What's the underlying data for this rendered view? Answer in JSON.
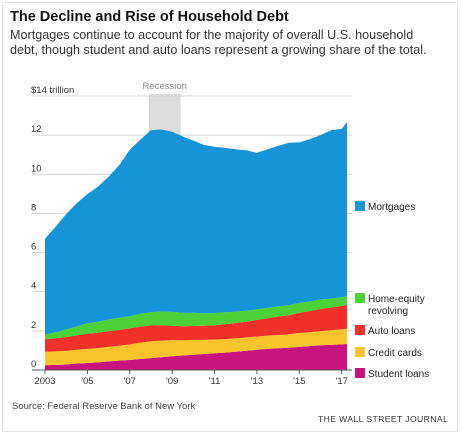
{
  "header": {
    "title": "The Decline and Rise of Household Debt",
    "subtitle": "Mortgages continue to account for the majority of overall U.S. household debt, though student and auto loans represent a growing share of the total."
  },
  "footer": {
    "source": "Source: Federal Reserve Bank of New York",
    "credit": "THE WALL STREET JOURNAL"
  },
  "chart_data": {
    "type": "area",
    "stacked": true,
    "title": "The Decline and Rise of Household Debt",
    "ylabel": "",
    "y_unit_label": "$14 trillion",
    "ylim": [
      0,
      14
    ],
    "yticks": [
      0,
      2,
      4,
      6,
      8,
      10,
      12
    ],
    "xlim": [
      2003.0,
      2017.25
    ],
    "xtick_labels": [
      {
        "x": 2003,
        "label": "2003"
      },
      {
        "x": 2005,
        "label": "'05"
      },
      {
        "x": 2007,
        "label": "'07"
      },
      {
        "x": 2009,
        "label": "'09"
      },
      {
        "x": 2011,
        "label": "'11"
      },
      {
        "x": 2013,
        "label": "'13"
      },
      {
        "x": 2015,
        "label": "'15"
      },
      {
        "x": 2017,
        "label": "'17"
      }
    ],
    "grid": "horizontal",
    "legend_placement": "right, labels beside series ends",
    "recession": {
      "label": "Recession",
      "start": 2007.9,
      "end": 2009.4,
      "color": "#dcdcdc"
    },
    "x": [
      2003.0,
      2003.5,
      2004.0,
      2004.5,
      2005.0,
      2005.5,
      2006.0,
      2006.5,
      2007.0,
      2007.5,
      2008.0,
      2008.5,
      2009.0,
      2009.5,
      2010.0,
      2010.5,
      2011.0,
      2011.5,
      2012.0,
      2012.5,
      2013.0,
      2013.5,
      2014.0,
      2014.5,
      2015.0,
      2015.5,
      2016.0,
      2016.5,
      2017.0,
      2017.25
    ],
    "series": [
      {
        "name": "Student loans",
        "color": "#c8147e",
        "values": [
          0.24,
          0.26,
          0.28,
          0.33,
          0.36,
          0.39,
          0.44,
          0.48,
          0.51,
          0.56,
          0.61,
          0.65,
          0.7,
          0.74,
          0.78,
          0.82,
          0.86,
          0.89,
          0.93,
          0.98,
          1.03,
          1.08,
          1.11,
          1.14,
          1.18,
          1.22,
          1.26,
          1.28,
          1.31,
          1.33
        ]
      },
      {
        "name": "Credit cards",
        "color": "#f9c42c",
        "values": [
          0.69,
          0.69,
          0.7,
          0.7,
          0.72,
          0.73,
          0.74,
          0.76,
          0.8,
          0.84,
          0.86,
          0.85,
          0.83,
          0.78,
          0.76,
          0.72,
          0.7,
          0.69,
          0.69,
          0.68,
          0.68,
          0.68,
          0.68,
          0.69,
          0.71,
          0.71,
          0.73,
          0.75,
          0.77,
          0.78
        ]
      },
      {
        "name": "Auto loans",
        "color": "#f2322a",
        "values": [
          0.64,
          0.67,
          0.7,
          0.74,
          0.78,
          0.79,
          0.8,
          0.81,
          0.82,
          0.82,
          0.81,
          0.79,
          0.73,
          0.72,
          0.71,
          0.72,
          0.73,
          0.76,
          0.78,
          0.81,
          0.85,
          0.88,
          0.94,
          0.97,
          1.03,
          1.08,
          1.13,
          1.16,
          1.19,
          1.21
        ]
      },
      {
        "name": "Home-equity revolving",
        "color": "#4bd238",
        "values": [
          0.24,
          0.3,
          0.39,
          0.46,
          0.53,
          0.56,
          0.6,
          0.61,
          0.62,
          0.65,
          0.68,
          0.7,
          0.71,
          0.69,
          0.67,
          0.64,
          0.62,
          0.61,
          0.58,
          0.56,
          0.54,
          0.53,
          0.52,
          0.51,
          0.51,
          0.49,
          0.48,
          0.46,
          0.45,
          0.45
        ]
      },
      {
        "name": "Mortgages",
        "color": "#1595d8",
        "values": [
          4.9,
          5.4,
          5.9,
          6.3,
          6.6,
          6.9,
          7.3,
          7.8,
          8.5,
          8.9,
          9.3,
          9.3,
          9.2,
          9.0,
          8.8,
          8.6,
          8.5,
          8.4,
          8.3,
          8.2,
          8.0,
          8.1,
          8.2,
          8.3,
          8.2,
          8.3,
          8.4,
          8.6,
          8.6,
          8.9
        ]
      }
    ]
  }
}
